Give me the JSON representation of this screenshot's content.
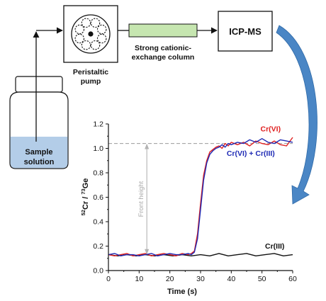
{
  "diagram": {
    "sample_label": [
      "Sample",
      "solution"
    ],
    "pump_label": [
      "Peristaltic",
      "pump"
    ],
    "column_label": [
      "Strong cationic-",
      "exchange column"
    ],
    "detector_label": "ICP-MS",
    "front_height_label": "Front height",
    "colors": {
      "column_fill": "#c6e6b0",
      "liquid_fill": "#b3cde8",
      "curved_arrow": "#4a86c5"
    }
  },
  "chart_data": {
    "type": "line",
    "title": "",
    "xlabel": "Time (s)",
    "ylabel": "52Cr / 73Ge",
    "xlim": [
      0,
      60
    ],
    "ylim": [
      0,
      1.2
    ],
    "xticks": [
      0,
      10,
      20,
      30,
      40,
      50,
      60
    ],
    "yticks": [
      0.0,
      0.2,
      0.4,
      0.6,
      0.8,
      1.0,
      1.2
    ],
    "xtick_labels": [
      "0",
      "10",
      "20",
      "30",
      "40",
      "50",
      "60"
    ],
    "ytick_labels": [
      "0.0",
      "0.2",
      "0.4",
      "0.6",
      "0.8",
      "1.0",
      "1.2"
    ],
    "reference_line": 1.04,
    "series": [
      {
        "name": "Cr(VI)",
        "color": "#e02020",
        "x": [
          0,
          2,
          4,
          6,
          8,
          10,
          12,
          14,
          16,
          18,
          20,
          22,
          24,
          26,
          27,
          28,
          29,
          30,
          31,
          32,
          33,
          34,
          35,
          36,
          37,
          38,
          39,
          40,
          42,
          44,
          46,
          48,
          50,
          52,
          54,
          56,
          58,
          60
        ],
        "y": [
          0.13,
          0.12,
          0.13,
          0.14,
          0.12,
          0.13,
          0.14,
          0.12,
          0.13,
          0.14,
          0.13,
          0.12,
          0.14,
          0.13,
          0.14,
          0.16,
          0.3,
          0.55,
          0.78,
          0.9,
          0.97,
          0.99,
          1.01,
          1.02,
          1.0,
          1.04,
          1.02,
          1.05,
          1.03,
          1.05,
          1.02,
          1.06,
          1.04,
          1.03,
          1.06,
          1.03,
          1.02,
          1.09
        ]
      },
      {
        "name": "Cr(VI) + Cr(III)",
        "color": "#1f2bb5",
        "x": [
          0,
          2,
          4,
          6,
          8,
          10,
          12,
          14,
          16,
          18,
          20,
          22,
          24,
          26,
          27,
          28,
          29,
          30,
          31,
          32,
          33,
          34,
          35,
          36,
          37,
          38,
          39,
          40,
          42,
          44,
          46,
          48,
          50,
          52,
          54,
          56,
          58,
          60
        ],
        "y": [
          0.13,
          0.14,
          0.12,
          0.13,
          0.13,
          0.12,
          0.13,
          0.14,
          0.12,
          0.13,
          0.14,
          0.13,
          0.13,
          0.14,
          0.13,
          0.15,
          0.26,
          0.5,
          0.74,
          0.88,
          0.95,
          0.98,
          1.0,
          1.01,
          1.03,
          1.01,
          1.04,
          1.03,
          1.05,
          1.04,
          1.07,
          1.05,
          1.08,
          1.05,
          1.04,
          1.07,
          1.06,
          1.05
        ]
      },
      {
        "name": "Cr(III)",
        "color": "#111111",
        "x": [
          0,
          3,
          6,
          9,
          12,
          15,
          18,
          21,
          24,
          27,
          30,
          33,
          36,
          39,
          42,
          45,
          48,
          51,
          54,
          57,
          60
        ],
        "y": [
          0.13,
          0.12,
          0.13,
          0.12,
          0.13,
          0.12,
          0.13,
          0.12,
          0.13,
          0.12,
          0.13,
          0.12,
          0.14,
          0.12,
          0.13,
          0.14,
          0.12,
          0.13,
          0.14,
          0.12,
          0.13
        ]
      }
    ]
  }
}
